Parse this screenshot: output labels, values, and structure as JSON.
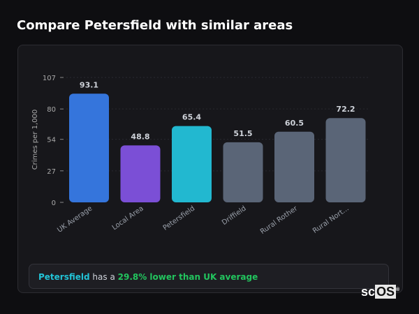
{
  "title": "Compare Petersfield with similar areas",
  "chart_data": {
    "type": "bar",
    "title": "",
    "xlabel": "",
    "ylabel": "Crimes per 1,000",
    "ylim": [
      0,
      107
    ],
    "yticks": [
      0,
      27,
      54,
      80,
      107
    ],
    "categories": [
      "UK Average",
      "Local Area",
      "Petersfield",
      "Driffield",
      "Rural Rother",
      "Rural Nort..."
    ],
    "values": [
      93.1,
      48.8,
      65.4,
      51.5,
      60.5,
      72.2
    ],
    "value_labels": [
      "93.1",
      "48.8",
      "65.4",
      "51.5",
      "60.5",
      "72.2"
    ],
    "colors": [
      "#3575dc",
      "#7b4fd6",
      "#22b8d0",
      "#5a6577",
      "#5a6577",
      "#5a6577"
    ],
    "grid": true
  },
  "summary": {
    "area": "Petersfield",
    "middle": " has a ",
    "highlight": "29.8% lower than UK average"
  },
  "logo": {
    "text": "scOS"
  }
}
